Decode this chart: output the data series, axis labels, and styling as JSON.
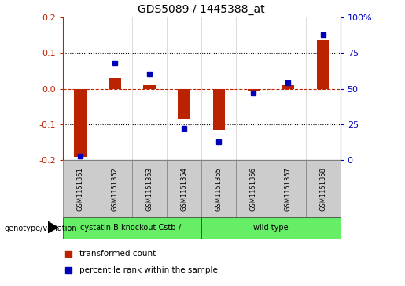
{
  "title": "GDS5089 / 1445388_at",
  "samples": [
    "GSM1151351",
    "GSM1151352",
    "GSM1151353",
    "GSM1151354",
    "GSM1151355",
    "GSM1151356",
    "GSM1151357",
    "GSM1151358"
  ],
  "red_values": [
    -0.19,
    0.03,
    0.01,
    -0.085,
    -0.115,
    -0.005,
    0.01,
    0.135
  ],
  "blue_values": [
    3,
    68,
    60,
    22,
    13,
    47,
    54,
    88
  ],
  "ylim": [
    -0.2,
    0.2
  ],
  "y2lim": [
    0,
    100
  ],
  "yticks": [
    -0.2,
    -0.1,
    0.0,
    0.1,
    0.2
  ],
  "y2ticks": [
    0,
    25,
    50,
    75,
    100
  ],
  "y2ticklabels": [
    "0",
    "25",
    "50",
    "75",
    "100%"
  ],
  "red_color": "#bb2200",
  "blue_color": "#0000bb",
  "group1_label": "cystatin B knockout Cstb-/-",
  "group2_label": "wild type",
  "n_group1": 4,
  "n_group2": 4,
  "genotype_label": "genotype/variation",
  "legend_red": "transformed count",
  "legend_blue": "percentile rank within the sample",
  "bar_width": 0.35,
  "green_color": "#66ee66",
  "gray_color": "#cccccc"
}
